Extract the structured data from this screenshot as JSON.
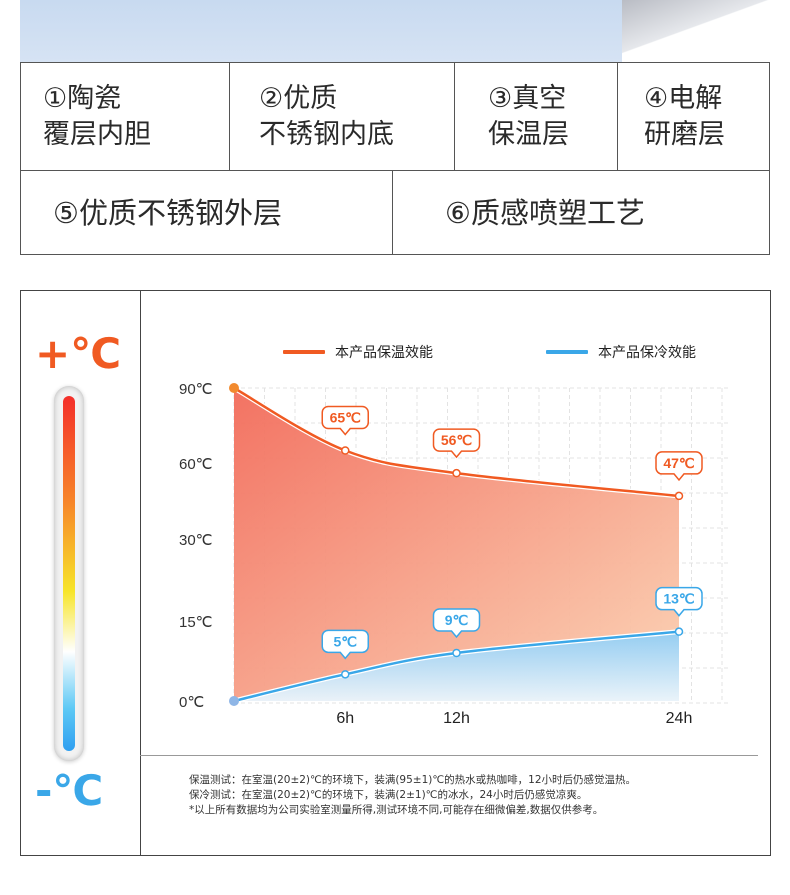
{
  "features": {
    "row1": [
      {
        "line1": "①陶瓷",
        "line2": "覆层内胆"
      },
      {
        "line1": "②优质",
        "line2": "不锈钢内底"
      },
      {
        "line1": "③真空",
        "line2": "保温层"
      },
      {
        "line1": "④电解",
        "line2": "研磨层"
      }
    ],
    "row2": [
      {
        "text": "⑤优质不锈钢外层"
      },
      {
        "text": "⑥质感喷塑工艺"
      }
    ]
  },
  "thermo": {
    "hot_label": "+℃",
    "cold_label": "-℃"
  },
  "colors": {
    "hot": "#f05a22",
    "cold": "#3aa7e8"
  },
  "chart_data": {
    "type": "area",
    "x": [
      0,
      6,
      12,
      24
    ],
    "x_tick_labels": [
      "6h",
      "12h",
      "24h"
    ],
    "y_tick_labels": [
      "90℃",
      "60℃",
      "30℃",
      "15℃",
      "0℃"
    ],
    "series": [
      {
        "name": "本产品保温效能",
        "values": [
          90,
          65,
          56,
          47
        ],
        "labels": [
          "",
          "65℃",
          "56℃",
          "47℃"
        ],
        "color": "#f05a22"
      },
      {
        "name": "本产品保冷效能",
        "values": [
          0,
          5,
          9,
          13
        ],
        "labels": [
          "",
          "5℃",
          "9℃",
          "13℃"
        ],
        "color": "#3aa7e8"
      }
    ],
    "legend": "top",
    "grid": true
  },
  "notes": [
    "保温测试：在室温(20±2)℃的环境下，装满(95±1)℃的热水或热咖啡，12小时后仍感觉温热。",
    "保冷测试：在室温(20±2)℃的环境下，装满(2±1)℃的冰水，24小时后仍感觉凉爽。",
    "*以上所有数据均为公司实验室测量所得,测试环境不同,可能存在细微偏差,数据仅供参考。"
  ]
}
